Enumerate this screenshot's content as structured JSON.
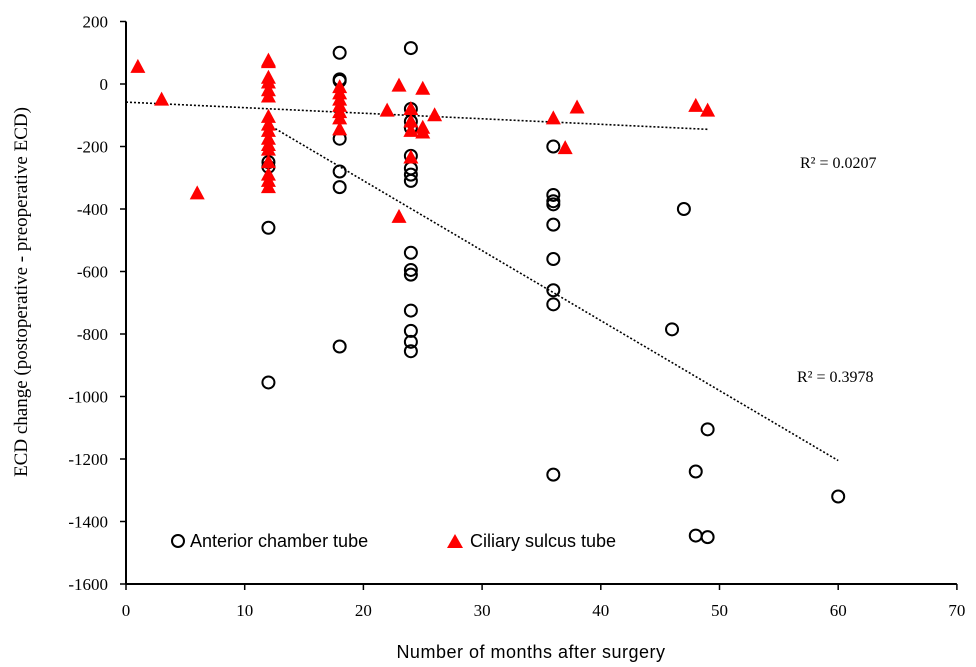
{
  "chart_data": {
    "type": "scatter",
    "xlabel": "Number of months after surgery",
    "ylabel": "ECD change  (postoperative - preoperative  ECD)",
    "xlim": [
      0,
      70
    ],
    "ylim": [
      -1600,
      200
    ],
    "xticks": [
      0,
      10,
      20,
      30,
      40,
      50,
      60,
      70
    ],
    "yticks": [
      200,
      0,
      -200,
      -400,
      -600,
      -800,
      -1000,
      -1200,
      -1400,
      -1600
    ],
    "grid": false,
    "legend_position": "bottom-left",
    "series": [
      {
        "name": "Anterior chamber tube",
        "marker": "open-circle",
        "color": "#000000",
        "points": [
          [
            12,
            -250
          ],
          [
            12,
            -265
          ],
          [
            12,
            -460
          ],
          [
            12,
            -955
          ],
          [
            18,
            100
          ],
          [
            18,
            15
          ],
          [
            18,
            10
          ],
          [
            18,
            -175
          ],
          [
            18,
            -280
          ],
          [
            18,
            -330
          ],
          [
            18,
            -840
          ],
          [
            24,
            115
          ],
          [
            24,
            -80
          ],
          [
            24,
            -120
          ],
          [
            24,
            -140
          ],
          [
            24,
            -230
          ],
          [
            24,
            -270
          ],
          [
            24,
            -290
          ],
          [
            24,
            -310
          ],
          [
            24,
            -540
          ],
          [
            24,
            -595
          ],
          [
            24,
            -610
          ],
          [
            24,
            -725
          ],
          [
            24,
            -790
          ],
          [
            24,
            -825
          ],
          [
            24,
            -855
          ],
          [
            36,
            -200
          ],
          [
            36,
            -355
          ],
          [
            36,
            -375
          ],
          [
            36,
            -385
          ],
          [
            36,
            -450
          ],
          [
            36,
            -560
          ],
          [
            36,
            -660
          ],
          [
            36,
            -705
          ],
          [
            36,
            -1250
          ],
          [
            46,
            -785
          ],
          [
            47,
            -400
          ],
          [
            48,
            -1240
          ],
          [
            48,
            -1445
          ],
          [
            49,
            -1105
          ],
          [
            49,
            -1450
          ],
          [
            60,
            -1320
          ]
        ],
        "trendline": {
          "x": [
            12,
            60
          ],
          "y": [
            -130,
            -1205
          ]
        },
        "r_squared_label": "R² = 0.3978"
      },
      {
        "name": "Ciliary sulcus tube",
        "marker": "filled-triangle",
        "color": "#ff0000",
        "points": [
          [
            1,
            55
          ],
          [
            3,
            -50
          ],
          [
            6,
            -350
          ],
          [
            12,
            75
          ],
          [
            12,
            70
          ],
          [
            12,
            20
          ],
          [
            12,
            5
          ],
          [
            12,
            -20
          ],
          [
            12,
            -40
          ],
          [
            12,
            -105
          ],
          [
            12,
            -130
          ],
          [
            12,
            -150
          ],
          [
            12,
            -175
          ],
          [
            12,
            -195
          ],
          [
            12,
            -210
          ],
          [
            12,
            -250
          ],
          [
            12,
            -290
          ],
          [
            12,
            -310
          ],
          [
            12,
            -330
          ],
          [
            18,
            -10
          ],
          [
            18,
            -30
          ],
          [
            18,
            -50
          ],
          [
            18,
            -70
          ],
          [
            18,
            -90
          ],
          [
            18,
            -110
          ],
          [
            18,
            -145
          ],
          [
            22,
            -85
          ],
          [
            23,
            -5
          ],
          [
            23,
            -425
          ],
          [
            24,
            -80
          ],
          [
            24,
            -120
          ],
          [
            24,
            -150
          ],
          [
            24,
            -235
          ],
          [
            25,
            -15
          ],
          [
            25,
            -140
          ],
          [
            25,
            -155
          ],
          [
            26,
            -100
          ],
          [
            36,
            -110
          ],
          [
            37,
            -205
          ],
          [
            38,
            -75
          ],
          [
            48,
            -70
          ],
          [
            49,
            -85
          ]
        ],
        "trendline": {
          "x": [
            0,
            49
          ],
          "y": [
            -58,
            -145
          ]
        },
        "r_squared_label": "R² = 0.0207"
      }
    ]
  }
}
